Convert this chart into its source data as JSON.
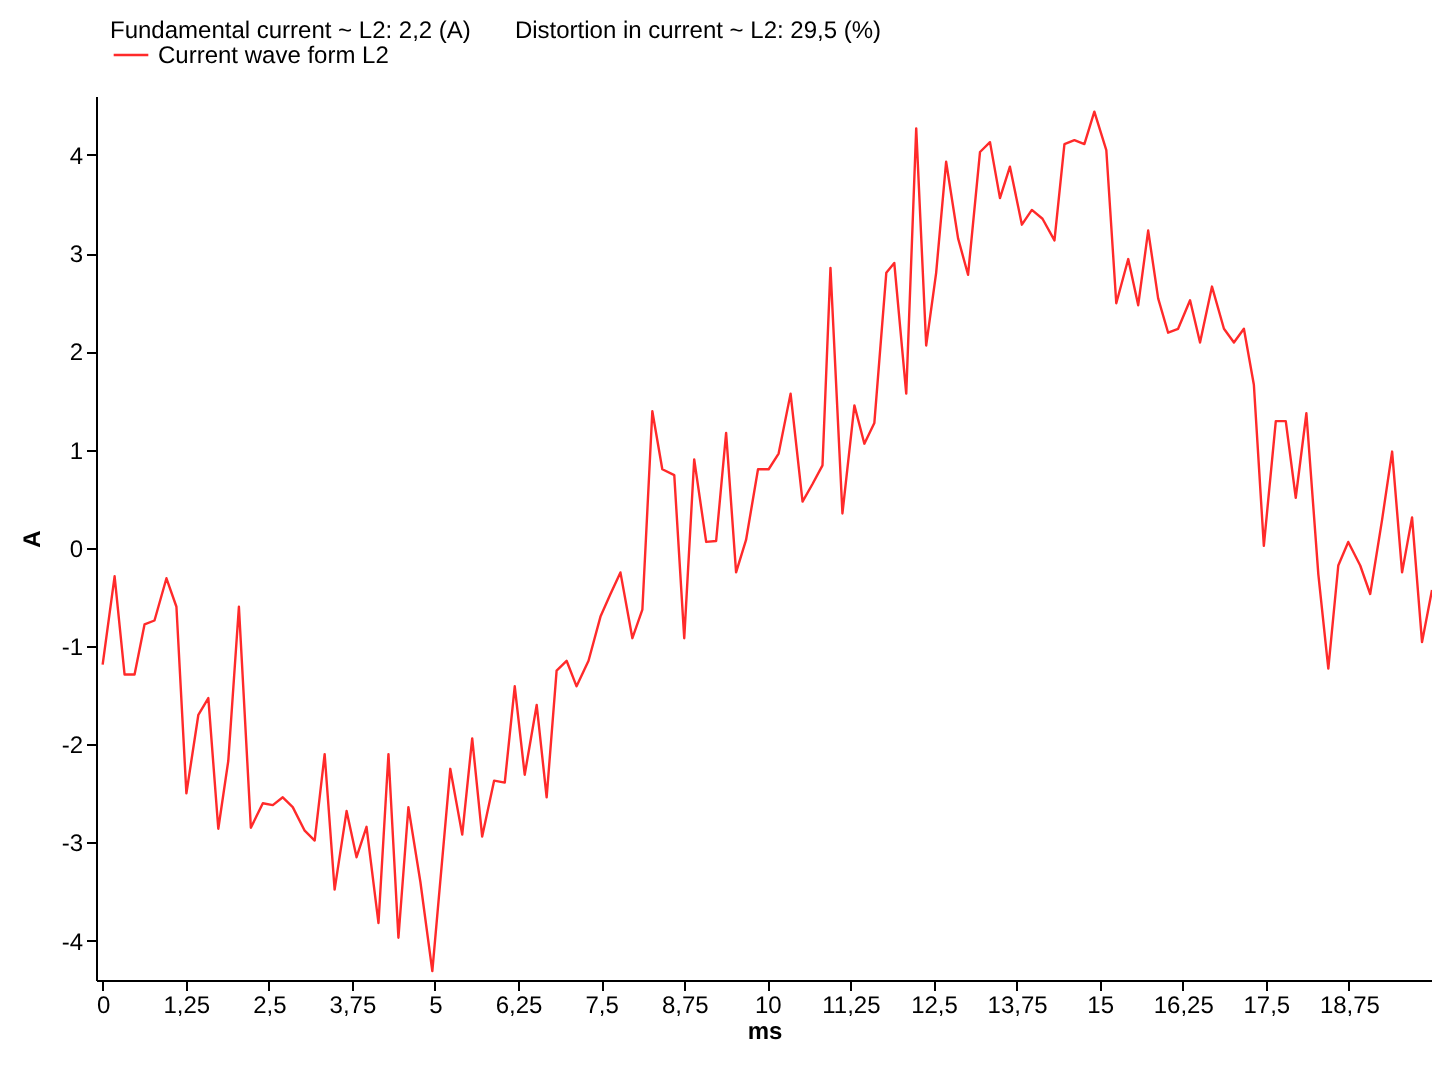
{
  "chart_data": {
    "type": "line",
    "title": "Fundamental current ~ L2: 2,2 (A)",
    "subtitle": "Distortion in current ~ L2: 29,5 (%)",
    "xlabel": "ms",
    "ylabel": "A",
    "x": [
      0,
      0.18,
      0.33,
      0.48,
      0.63,
      0.78,
      0.96,
      1.11,
      1.26,
      1.44,
      1.59,
      1.74,
      1.89,
      2.05,
      2.23,
      2.41,
      2.56,
      2.71,
      2.86,
      3.04,
      3.19,
      3.34,
      3.49,
      3.67,
      3.82,
      3.97,
      4.15,
      4.3,
      4.45,
      4.6,
      4.78,
      4.96,
      5.23,
      5.41,
      5.56,
      5.71,
      5.89,
      6.05,
      6.2,
      6.35,
      6.53,
      6.68,
      6.83,
      6.98,
      7.13,
      7.31,
      7.49,
      7.64,
      7.79,
      7.97,
      8.12,
      8.27,
      8.42,
      8.6,
      8.75,
      8.9,
      9.08,
      9.23,
      9.38,
      9.53,
      9.68,
      9.86,
      10.02,
      10.17,
      10.35,
      10.53,
      10.68,
      10.83,
      10.95,
      11.13,
      11.31,
      11.46,
      11.61,
      11.79,
      11.91,
      12.09,
      12.24,
      12.39,
      12.54,
      12.69,
      12.87,
      13.02,
      13.2,
      13.35,
      13.5,
      13.65,
      13.83,
      13.98,
      14.14,
      14.32,
      14.47,
      14.62,
      14.77,
      14.92,
      15.1,
      15.25,
      15.43,
      15.58,
      15.73,
      15.88,
      16.03,
      16.18,
      16.36,
      16.51,
      16.69,
      16.87,
      17.02,
      17.17,
      17.32,
      17.47,
      17.65,
      17.8,
      17.95,
      18.11,
      18.29,
      18.44,
      18.59,
      18.74,
      18.92,
      19.07,
      19.25,
      19.4,
      19.55,
      19.7,
      19.85,
      20
    ],
    "series": [
      {
        "name": "Current wave form L2",
        "color": "#ff2a2a",
        "values": [
          -1.19,
          -0.29,
          -1.29,
          -1.29,
          -0.78,
          -0.74,
          -0.31,
          -0.6,
          -2.5,
          -1.7,
          -1.53,
          -2.86,
          -2.17,
          -0.6,
          -2.85,
          -2.6,
          -2.62,
          -2.54,
          -2.64,
          -2.88,
          -2.98,
          -2.1,
          -3.48,
          -2.68,
          -3.15,
          -2.84,
          -3.82,
          -2.1,
          -3.97,
          -2.64,
          -3.4,
          -4.31,
          -2.25,
          -2.92,
          -1.94,
          -2.94,
          -2.37,
          -2.39,
          -1.41,
          -2.31,
          -1.6,
          -2.54,
          -1.25,
          -1.15,
          -1.41,
          -1.15,
          -0.7,
          -0.47,
          -0.25,
          -0.92,
          -0.63,
          1.39,
          0.8,
          0.74,
          -0.92,
          0.9,
          0.06,
          0.07,
          1.17,
          -0.25,
          0.08,
          0.8,
          0.8,
          0.96,
          1.57,
          0.47,
          0.65,
          0.84,
          2.85,
          0.35,
          1.45,
          1.06,
          1.27,
          2.8,
          2.9,
          1.57,
          4.27,
          2.06,
          2.8,
          3.93,
          3.15,
          2.78,
          4.03,
          4.13,
          3.56,
          3.88,
          3.29,
          3.44,
          3.35,
          3.13,
          4.11,
          4.15,
          4.11,
          4.44,
          4.05,
          2.49,
          2.94,
          2.47,
          3.23,
          2.54,
          2.19,
          2.23,
          2.52,
          2.09,
          2.66,
          2.23,
          2.09,
          2.23,
          1.66,
          0.02,
          1.29,
          1.29,
          0.51,
          1.37,
          -0.27,
          -1.23,
          -0.18,
          0.06,
          -0.18,
          -0.47,
          0.29,
          0.98,
          -0.25,
          0.31,
          -0.96,
          -0.43
        ]
      }
    ],
    "xlim": [
      -0.1,
      20
    ],
    "ylim": [
      -4.4,
      4.6
    ],
    "xticks": [
      0,
      {
        "value": 1.25,
        "label": "1,25"
      },
      {
        "value": 2.5,
        "label": "2,5"
      },
      {
        "value": 3.75,
        "label": "3,75"
      },
      5,
      {
        "value": 6.25,
        "label": "6,25"
      },
      {
        "value": 7.5,
        "label": "7,5"
      },
      {
        "value": 8.75,
        "label": "8,75"
      },
      10,
      {
        "value": 11.25,
        "label": "11,25"
      },
      {
        "value": 12.5,
        "label": "12,5"
      },
      {
        "value": 13.75,
        "label": "13,75"
      },
      15,
      {
        "value": 16.25,
        "label": "16,25"
      },
      {
        "value": 17.5,
        "label": "17,5"
      },
      {
        "value": 18.75,
        "label": "18,75"
      }
    ],
    "yticks": [
      -4,
      -3,
      -2,
      -1,
      0,
      1,
      2,
      3,
      4
    ],
    "grid": false,
    "legend": "top left",
    "marker": "none",
    "line_style": "solid"
  }
}
